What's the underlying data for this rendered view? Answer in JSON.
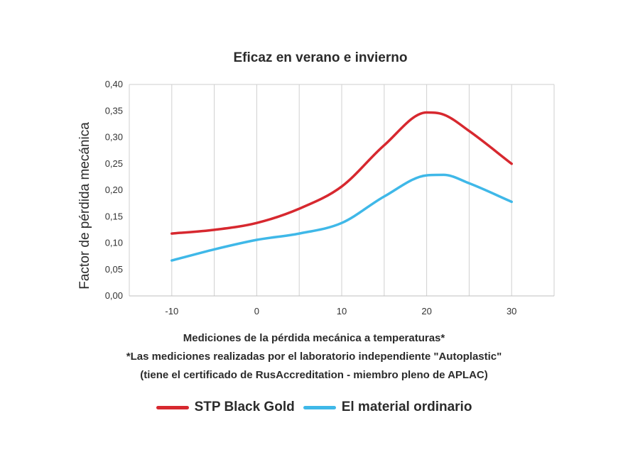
{
  "chart_data": {
    "type": "line",
    "title": "Eficaz en verano e invierno",
    "xlabel": "Mediciones de la pérdida mecánica a temperaturas*",
    "ylabel": "Factor de pérdida mecánica",
    "xlim": [
      -15,
      35
    ],
    "ylim": [
      0,
      0.4
    ],
    "xticks": [
      -10,
      0,
      10,
      20,
      30
    ],
    "xtick_labels": [
      "-10",
      "0",
      "10",
      "20",
      "30"
    ],
    "yticks": [
      0,
      0.05,
      0.1,
      0.15,
      0.2,
      0.25,
      0.3,
      0.35,
      0.4
    ],
    "ytick_labels": [
      "0,00",
      "0,05",
      "0,10",
      "0,15",
      "0,20",
      "0,25",
      "0,30",
      "0,35",
      "0,40"
    ],
    "grid": "vertical",
    "notes": [
      "*Las mediciones realizadas por el laboratorio independiente \"Autoplastic\"",
      "(tiene el certificado de RusAccreditation - miembro pleno de APLAC)"
    ],
    "legend_placement": "bottom",
    "series": [
      {
        "name": "STP Black Gold",
        "color": "#d7282f",
        "x": [
          -10,
          -5,
          0,
          5,
          10,
          15,
          20,
          22,
          25,
          30
        ],
        "y": [
          0.118,
          0.125,
          0.138,
          0.165,
          0.207,
          0.285,
          0.347,
          0.343,
          0.312,
          0.25
        ]
      },
      {
        "name": "El material ordinario",
        "color": "#3fb8e8",
        "x": [
          -10,
          -5,
          0,
          5,
          10,
          15,
          20,
          22,
          25,
          30
        ],
        "y": [
          0.067,
          0.088,
          0.106,
          0.118,
          0.138,
          0.188,
          0.228,
          0.229,
          0.213,
          0.178
        ]
      }
    ]
  }
}
